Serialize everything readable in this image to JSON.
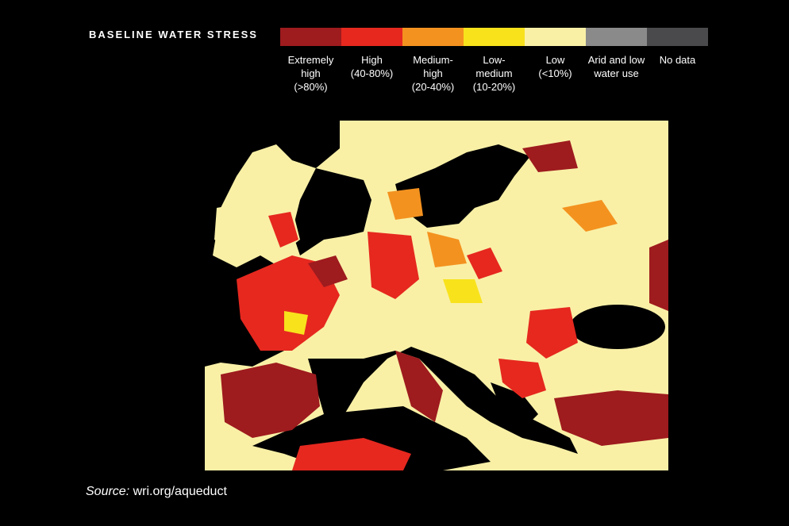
{
  "title": "BASELINE WATER STRESS",
  "legend": [
    {
      "lines": [
        "Extremely",
        "high",
        "(>80%)"
      ],
      "color": "#9e1b1e"
    },
    {
      "lines": [
        "High",
        "(40-80%)"
      ],
      "color": "#e6281f"
    },
    {
      "lines": [
        "Medium-",
        "high",
        "(20-40%)"
      ],
      "color": "#f4921f"
    },
    {
      "lines": [
        "Low-",
        "medium",
        "(10-20%)"
      ],
      "color": "#f8e21c"
    },
    {
      "lines": [
        "Low",
        "(<10%)"
      ],
      "color": "#f9f0a6"
    },
    {
      "lines": [
        "Arid and low",
        "water use"
      ],
      "color": "#8a8a8a"
    },
    {
      "lines": [
        "No data"
      ],
      "color": "#4a4a4c"
    }
  ],
  "source": {
    "label": "Source:",
    "text": "wri.org/aqueduct"
  }
}
